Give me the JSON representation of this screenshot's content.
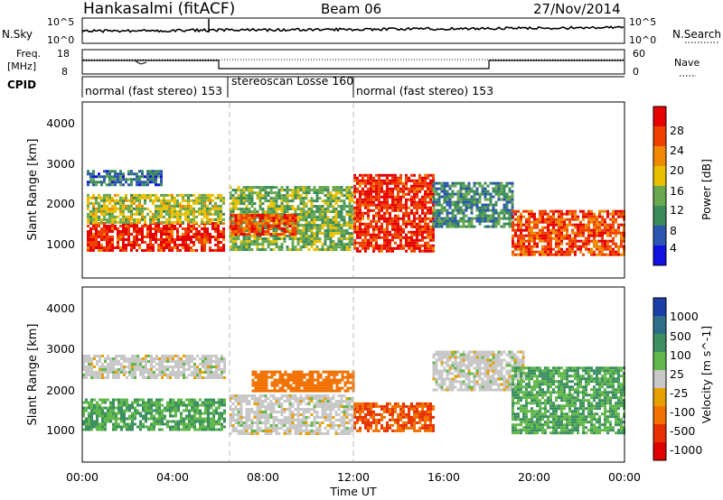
{
  "header": {
    "title": "Hankasalmi (fitACF)",
    "beam": "Beam 06",
    "date": "27/Nov/2014"
  },
  "noise_panel": {
    "left_label": "N.Sky",
    "left_ticks": [
      "10^5",
      "10^0"
    ],
    "right_ticks": [
      "10^5",
      "10^0"
    ],
    "right_label": "N.Search"
  },
  "freq_panel": {
    "label_line1": "Freq.",
    "label_line2": "[MHz]",
    "left_ticks": [
      "18",
      "8"
    ],
    "right_ticks": [
      "60",
      "0"
    ],
    "right_label": "Nave"
  },
  "cpid_panel": {
    "label": "CPID",
    "segments": [
      {
        "start_hour": 0.0,
        "end_hour": 6.4,
        "label": "normal (fast stereo) 153"
      },
      {
        "start_hour": 6.4,
        "end_hour": 12.0,
        "label": "stereoscan Losse 160"
      },
      {
        "start_hour": 12.0,
        "end_hour": 24.0,
        "label": "normal (fast stereo) 153"
      }
    ]
  },
  "x_axis": {
    "label": "Time UT",
    "ticks": [
      "00:00",
      "04:00",
      "08:00",
      "12:00",
      "16:00",
      "20:00",
      "00:00"
    ],
    "range_hours": [
      0,
      24
    ]
  },
  "power_panel": {
    "ylabel": "Slant Range [km]",
    "yticks": [
      "1000",
      "2000",
      "3000",
      "4000"
    ],
    "colorbar_label": "Power [dB]",
    "colorbar_ticks": [
      "4",
      "8",
      "12",
      "16",
      "20",
      "24",
      "28"
    ],
    "colorbar_colors": [
      "#1010e0",
      "#2a55b0",
      "#3a8a5a",
      "#6aa84f",
      "#e8c000",
      "#f08800",
      "#f04000",
      "#e60000"
    ]
  },
  "velocity_panel": {
    "ylabel": "Slant Range [km]",
    "yticks": [
      "1000",
      "2000",
      "3000",
      "4000"
    ],
    "colorbar_label": "Velocity [m s^-1]",
    "colorbar_ticks": [
      "1000",
      "500",
      "100",
      "25",
      "-25",
      "-100",
      "-500",
      "-1000"
    ],
    "colorbar_colors": [
      "#1a3fa8",
      "#2f6e8a",
      "#3c9060",
      "#62b84a",
      "#c8c8c8",
      "#e8a000",
      "#f07000",
      "#e83000",
      "#e00000"
    ]
  },
  "chart_data": {
    "type": "heatmap",
    "title": "Hankasalmi (fitACF)",
    "xlabel": "Time UT",
    "ylabel": "Slant Range [km]",
    "x_range_hours": [
      0,
      24
    ],
    "ylim_km": [
      200,
      4600
    ],
    "mode_changes_hours": [
      6.4,
      12.0
    ],
    "power_db_regions": [
      {
        "t": [
          0.2,
          6.3
        ],
        "range_km": [
          900,
          1600
        ],
        "value": 28
      },
      {
        "t": [
          0.2,
          6.3
        ],
        "range_km": [
          1600,
          2300
        ],
        "value": 16
      },
      {
        "t": [
          0.2,
          3.5
        ],
        "range_km": [
          2500,
          2900
        ],
        "value": 8
      },
      {
        "t": [
          6.5,
          12.0
        ],
        "range_km": [
          900,
          2500
        ],
        "value": 14
      },
      {
        "t": [
          6.5,
          9.5
        ],
        "range_km": [
          1300,
          1800
        ],
        "value": 26
      },
      {
        "t": [
          12.0,
          15.5
        ],
        "range_km": [
          900,
          2800
        ],
        "value": 28
      },
      {
        "t": [
          15.5,
          19.0
        ],
        "range_km": [
          1500,
          2600
        ],
        "value": 10
      },
      {
        "t": [
          19.0,
          24.0
        ],
        "range_km": [
          800,
          1900
        ],
        "value": 26
      }
    ],
    "velocity_regions": [
      {
        "t": [
          0.0,
          6.3
        ],
        "range_km": [
          1000,
          1800
        ],
        "value": 100
      },
      {
        "t": [
          0.0,
          6.3
        ],
        "range_km": [
          2300,
          2900
        ],
        "value": 0
      },
      {
        "t": [
          6.5,
          12.0
        ],
        "range_km": [
          900,
          1900
        ],
        "value": 0
      },
      {
        "t": [
          7.5,
          12.0
        ],
        "range_km": [
          2000,
          2500
        ],
        "value": -300
      },
      {
        "t": [
          12.0,
          15.5
        ],
        "range_km": [
          1000,
          1700
        ],
        "value": -500
      },
      {
        "t": [
          15.5,
          19.5
        ],
        "range_km": [
          2000,
          3000
        ],
        "value": 0
      },
      {
        "t": [
          19.0,
          24.0
        ],
        "range_km": [
          900,
          2600
        ],
        "value": 100
      }
    ]
  }
}
